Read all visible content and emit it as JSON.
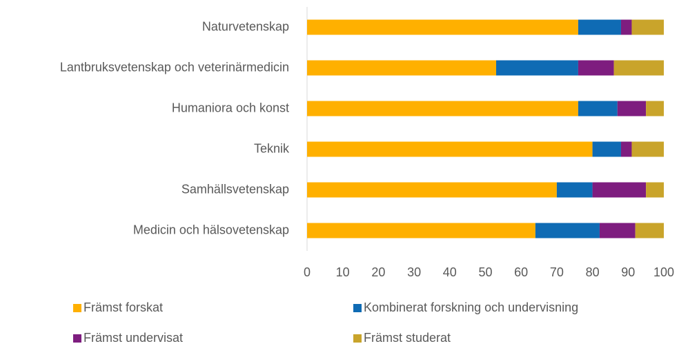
{
  "chart_data": {
    "type": "stacked_bar_horizontal",
    "categories": [
      "Naturvetenskap",
      "Lantbruksvetenskap och veterinärmedicin",
      "Humaniora och konst",
      "Teknik",
      "Samhällsvetenskap",
      "Medicin och hälsovetenskap"
    ],
    "series": [
      {
        "name": "Främst forskat",
        "color": "#ffb000",
        "values": [
          76,
          53,
          76,
          80,
          70,
          64
        ]
      },
      {
        "name": "Kombinerat forskning och undervisning",
        "color": "#0f6bb4",
        "values": [
          12,
          23,
          11,
          8,
          10,
          18
        ]
      },
      {
        "name": "Främst undervisat",
        "color": "#7e1d7f",
        "values": [
          3,
          10,
          8,
          3,
          15,
          10
        ]
      },
      {
        "name": "Främst studerat",
        "color": "#c9a42b",
        "values": [
          9,
          14,
          5,
          9,
          5,
          8
        ]
      }
    ],
    "xlim": [
      0,
      100
    ],
    "xticks": [
      0,
      10,
      20,
      30,
      40,
      50,
      60,
      70,
      80,
      90,
      100
    ],
    "grid": false
  }
}
